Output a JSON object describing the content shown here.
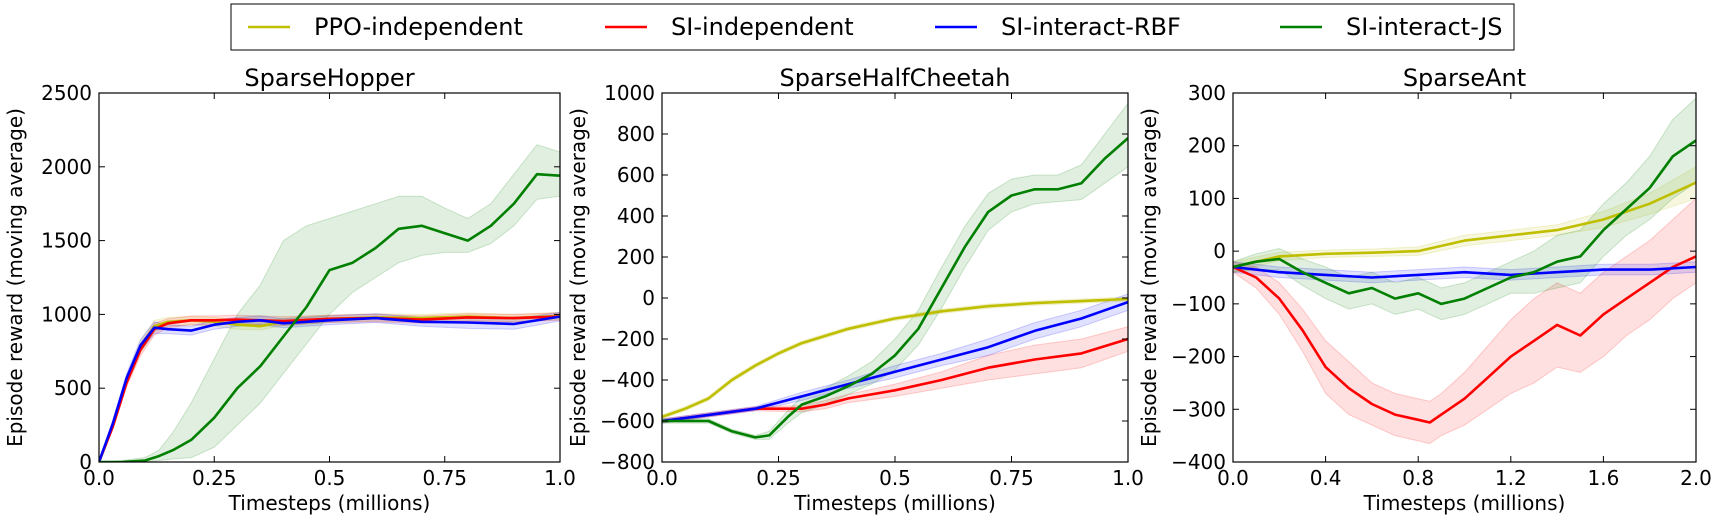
{
  "legend": {
    "entries": [
      {
        "label": "PPO-independent",
        "color": "#bfbf00"
      },
      {
        "label": "SI-independent",
        "color": "#ff0000"
      },
      {
        "label": "SI-interact-RBF",
        "color": "#0000ff"
      },
      {
        "label": "SI-interact-JS",
        "color": "#007f00"
      }
    ],
    "placement": "top-center"
  },
  "chart_data": [
    {
      "type": "line",
      "title": "SparseHopper",
      "xlabel": "Timesteps (millions)",
      "ylabel": "Episode reward (moving average)",
      "xlim": [
        0,
        1.0
      ],
      "ylim": [
        0,
        2500
      ],
      "xticks": [
        0,
        0.25,
        0.5,
        0.75,
        1.0
      ],
      "xtick_labels": [
        "0.0",
        "0.25",
        "0.5",
        "0.75",
        "1.0"
      ],
      "yticks": [
        0,
        500,
        1000,
        1500,
        2000,
        2500
      ],
      "ytick_labels": [
        "0",
        "500",
        "1000",
        "1500",
        "2000",
        "2500"
      ],
      "series": [
        {
          "name": "PPO-independent",
          "color": "#bfbf00",
          "x": [
            0,
            0.03,
            0.06,
            0.09,
            0.12,
            0.15,
            0.2,
            0.25,
            0.3,
            0.35,
            0.4,
            0.5,
            0.6,
            0.7,
            0.8,
            0.9,
            1.0
          ],
          "y": [
            0,
            250,
            550,
            780,
            920,
            950,
            960,
            950,
            930,
            920,
            950,
            970,
            980,
            975,
            985,
            975,
            990
          ],
          "lo": [
            0,
            230,
            520,
            740,
            880,
            920,
            930,
            920,
            900,
            895,
            925,
            945,
            955,
            950,
            960,
            950,
            965
          ],
          "hi": [
            0,
            270,
            580,
            820,
            960,
            980,
            985,
            980,
            960,
            950,
            975,
            995,
            1005,
            1000,
            1010,
            1000,
            1015
          ]
        },
        {
          "name": "SI-independent",
          "color": "#ff0000",
          "x": [
            0,
            0.03,
            0.06,
            0.09,
            0.12,
            0.15,
            0.2,
            0.25,
            0.3,
            0.35,
            0.4,
            0.5,
            0.6,
            0.7,
            0.8,
            0.9,
            1.0
          ],
          "y": [
            0,
            240,
            540,
            760,
            900,
            940,
            960,
            960,
            965,
            960,
            955,
            970,
            975,
            965,
            980,
            975,
            985
          ],
          "lo": [
            0,
            220,
            510,
            720,
            860,
            910,
            930,
            930,
            935,
            930,
            925,
            945,
            950,
            940,
            955,
            950,
            960
          ],
          "hi": [
            0,
            260,
            570,
            800,
            940,
            970,
            990,
            990,
            995,
            990,
            985,
            995,
            1000,
            990,
            1005,
            1000,
            1010
          ]
        },
        {
          "name": "SI-interact-RBF",
          "color": "#0000ff",
          "x": [
            0,
            0.03,
            0.06,
            0.09,
            0.12,
            0.15,
            0.2,
            0.25,
            0.3,
            0.35,
            0.4,
            0.5,
            0.6,
            0.7,
            0.8,
            0.9,
            1.0
          ],
          "y": [
            0,
            260,
            570,
            790,
            910,
            900,
            890,
            930,
            950,
            960,
            940,
            960,
            975,
            950,
            945,
            935,
            985
          ],
          "lo": [
            0,
            240,
            540,
            750,
            870,
            870,
            860,
            900,
            920,
            930,
            910,
            930,
            945,
            920,
            905,
            900,
            955
          ],
          "hi": [
            0,
            280,
            600,
            830,
            950,
            930,
            920,
            960,
            980,
            990,
            970,
            990,
            1005,
            980,
            985,
            970,
            1015
          ]
        },
        {
          "name": "SI-interact-JS",
          "color": "#007f00",
          "x": [
            0,
            0.05,
            0.1,
            0.13,
            0.16,
            0.2,
            0.25,
            0.3,
            0.35,
            0.4,
            0.45,
            0.5,
            0.55,
            0.6,
            0.65,
            0.7,
            0.75,
            0.8,
            0.85,
            0.9,
            0.95,
            1.0
          ],
          "y": [
            0,
            0,
            10,
            40,
            80,
            150,
            300,
            500,
            650,
            850,
            1050,
            1300,
            1350,
            1450,
            1580,
            1600,
            1550,
            1500,
            1600,
            1750,
            1950,
            1940
          ],
          "lo": [
            0,
            0,
            0,
            10,
            20,
            30,
            100,
            250,
            400,
            600,
            800,
            1000,
            1150,
            1250,
            1350,
            1400,
            1420,
            1420,
            1480,
            1600,
            1780,
            1800
          ],
          "hi": [
            0,
            10,
            30,
            80,
            200,
            400,
            700,
            1000,
            1200,
            1500,
            1600,
            1650,
            1700,
            1750,
            1800,
            1800,
            1720,
            1650,
            1750,
            1950,
            2150,
            2100
          ]
        }
      ]
    },
    {
      "type": "line",
      "title": "SparseHalfCheetah",
      "xlabel": "Timesteps (millions)",
      "ylabel": "Episode reward (moving average)",
      "xlim": [
        0,
        1.0
      ],
      "ylim": [
        -800,
        1000
      ],
      "xticks": [
        0,
        0.25,
        0.5,
        0.75,
        1.0
      ],
      "xtick_labels": [
        "0.0",
        "0.25",
        "0.5",
        "0.75",
        "1.0"
      ],
      "yticks": [
        -800,
        -600,
        -400,
        -200,
        0,
        200,
        400,
        600,
        800,
        1000
      ],
      "ytick_labels": [
        "−800",
        "−600",
        "−400",
        "−200",
        "0",
        "200",
        "400",
        "600",
        "800",
        "1000"
      ],
      "series": [
        {
          "name": "PPO-independent",
          "color": "#bfbf00",
          "x": [
            0,
            0.05,
            0.1,
            0.15,
            0.2,
            0.25,
            0.3,
            0.4,
            0.5,
            0.6,
            0.7,
            0.8,
            0.9,
            1.0
          ],
          "y": [
            -580,
            -540,
            -490,
            -400,
            -330,
            -270,
            -220,
            -150,
            -100,
            -65,
            -40,
            -25,
            -15,
            -5
          ],
          "lo": [
            -590,
            -550,
            -500,
            -410,
            -340,
            -280,
            -230,
            -160,
            -110,
            -75,
            -50,
            -35,
            -25,
            -15
          ],
          "hi": [
            -570,
            -530,
            -480,
            -390,
            -320,
            -260,
            -210,
            -140,
            -90,
            -55,
            -30,
            -15,
            -5,
            5
          ]
        },
        {
          "name": "SI-independent",
          "color": "#ff0000",
          "x": [
            0,
            0.1,
            0.2,
            0.3,
            0.35,
            0.4,
            0.5,
            0.6,
            0.7,
            0.8,
            0.9,
            1.0
          ],
          "y": [
            -600,
            -570,
            -540,
            -540,
            -520,
            -490,
            -450,
            -400,
            -340,
            -300,
            -270,
            -200
          ],
          "lo": [
            -610,
            -580,
            -550,
            -555,
            -540,
            -510,
            -480,
            -440,
            -400,
            -370,
            -340,
            -260
          ],
          "hi": [
            -590,
            -560,
            -530,
            -525,
            -500,
            -470,
            -420,
            -360,
            -280,
            -230,
            -200,
            -140
          ]
        },
        {
          "name": "SI-interact-RBF",
          "color": "#0000ff",
          "x": [
            0,
            0.1,
            0.2,
            0.3,
            0.4,
            0.5,
            0.6,
            0.7,
            0.8,
            0.9,
            0.95,
            1.0
          ],
          "y": [
            -600,
            -570,
            -540,
            -480,
            -420,
            -360,
            -300,
            -240,
            -160,
            -100,
            -60,
            -20
          ],
          "lo": [
            -610,
            -580,
            -550,
            -500,
            -440,
            -390,
            -330,
            -280,
            -200,
            -140,
            -100,
            -60
          ],
          "hi": [
            -590,
            -560,
            -530,
            -460,
            -400,
            -330,
            -270,
            -200,
            -120,
            -60,
            -20,
            20
          ]
        },
        {
          "name": "SI-interact-JS",
          "color": "#007f00",
          "x": [
            0,
            0.1,
            0.15,
            0.2,
            0.23,
            0.27,
            0.3,
            0.35,
            0.4,
            0.45,
            0.5,
            0.55,
            0.6,
            0.65,
            0.7,
            0.75,
            0.8,
            0.85,
            0.9,
            0.95,
            1.0
          ],
          "y": [
            -600,
            -600,
            -650,
            -680,
            -670,
            -580,
            -520,
            -480,
            -430,
            -370,
            -280,
            -150,
            50,
            250,
            420,
            500,
            530,
            530,
            560,
            680,
            780
          ],
          "lo": [
            -610,
            -610,
            -660,
            -690,
            -690,
            -610,
            -560,
            -520,
            -470,
            -420,
            -350,
            -230,
            -50,
            150,
            330,
            420,
            460,
            470,
            480,
            560,
            640
          ],
          "hi": [
            -590,
            -590,
            -640,
            -670,
            -650,
            -550,
            -480,
            -440,
            -380,
            -310,
            -200,
            -60,
            150,
            350,
            510,
            580,
            600,
            600,
            650,
            800,
            950
          ]
        }
      ]
    },
    {
      "type": "line",
      "title": "SparseAnt",
      "xlabel": "Timesteps (millions)",
      "ylabel": "Episode reward (moving average)",
      "xlim": [
        0,
        2.0
      ],
      "ylim": [
        -400,
        300
      ],
      "xticks": [
        0,
        0.4,
        0.8,
        1.2,
        1.6,
        2.0
      ],
      "xtick_labels": [
        "0.0",
        "0.4",
        "0.8",
        "1.2",
        "1.6",
        "2.0"
      ],
      "yticks": [
        -400,
        -300,
        -200,
        -100,
        0,
        100,
        200,
        300
      ],
      "ytick_labels": [
        "−400",
        "−300",
        "−200",
        "−100",
        "0",
        "100",
        "200",
        "300"
      ],
      "series": [
        {
          "name": "PPO-independent",
          "color": "#bfbf00",
          "x": [
            0,
            0.2,
            0.4,
            0.6,
            0.8,
            1.0,
            1.2,
            1.4,
            1.6,
            1.8,
            1.9,
            2.0
          ],
          "y": [
            -30,
            -10,
            -5,
            -3,
            0,
            20,
            30,
            40,
            60,
            90,
            110,
            130
          ],
          "lo": [
            -40,
            -18,
            -12,
            -10,
            -8,
            10,
            20,
            30,
            45,
            70,
            85,
            100
          ],
          "hi": [
            -20,
            -2,
            2,
            4,
            8,
            30,
            40,
            50,
            75,
            110,
            135,
            160
          ]
        },
        {
          "name": "SI-independent",
          "color": "#ff0000",
          "x": [
            0,
            0.1,
            0.2,
            0.3,
            0.4,
            0.5,
            0.6,
            0.7,
            0.8,
            0.85,
            0.9,
            1.0,
            1.1,
            1.2,
            1.3,
            1.4,
            1.5,
            1.6,
            1.7,
            1.8,
            1.9,
            2.0
          ],
          "y": [
            -30,
            -50,
            -90,
            -150,
            -220,
            -260,
            -290,
            -310,
            -320,
            -325,
            -310,
            -280,
            -240,
            -200,
            -170,
            -140,
            -160,
            -120,
            -90,
            -60,
            -30,
            -10
          ],
          "lo": [
            -40,
            -70,
            -120,
            -190,
            -270,
            -310,
            -330,
            -350,
            -360,
            -365,
            -350,
            -330,
            -300,
            -270,
            -250,
            -220,
            -230,
            -200,
            -160,
            -130,
            -90,
            -60
          ],
          "hi": [
            -20,
            -30,
            -60,
            -110,
            -170,
            -210,
            -250,
            -270,
            -280,
            -285,
            -270,
            -230,
            -180,
            -130,
            -90,
            -60,
            -80,
            -40,
            -10,
            20,
            60,
            100
          ]
        },
        {
          "name": "SI-interact-RBF",
          "color": "#0000ff",
          "x": [
            0,
            0.2,
            0.4,
            0.6,
            0.8,
            1.0,
            1.2,
            1.4,
            1.6,
            1.8,
            2.0
          ],
          "y": [
            -30,
            -40,
            -45,
            -50,
            -45,
            -40,
            -45,
            -40,
            -35,
            -35,
            -30
          ],
          "lo": [
            -40,
            -50,
            -55,
            -60,
            -55,
            -50,
            -55,
            -50,
            -45,
            -45,
            -40
          ],
          "hi": [
            -20,
            -30,
            -35,
            -40,
            -35,
            -30,
            -35,
            -30,
            -25,
            -25,
            -20
          ]
        },
        {
          "name": "SI-interact-JS",
          "color": "#007f00",
          "x": [
            0,
            0.1,
            0.2,
            0.3,
            0.4,
            0.5,
            0.6,
            0.7,
            0.8,
            0.9,
            1.0,
            1.1,
            1.2,
            1.3,
            1.4,
            1.5,
            1.6,
            1.7,
            1.8,
            1.9,
            2.0
          ],
          "y": [
            -30,
            -20,
            -15,
            -40,
            -60,
            -80,
            -70,
            -90,
            -80,
            -100,
            -90,
            -70,
            -50,
            -40,
            -20,
            -10,
            40,
            80,
            120,
            180,
            210
          ],
          "lo": [
            -40,
            -35,
            -35,
            -65,
            -90,
            -110,
            -100,
            -120,
            -110,
            -130,
            -120,
            -100,
            -80,
            -80,
            -70,
            -60,
            -10,
            30,
            60,
            100,
            130
          ],
          "hi": [
            -20,
            -5,
            5,
            -15,
            -30,
            -50,
            -40,
            -60,
            -50,
            -70,
            -60,
            -40,
            -20,
            0,
            30,
            40,
            90,
            130,
            180,
            250,
            290
          ]
        }
      ]
    }
  ]
}
